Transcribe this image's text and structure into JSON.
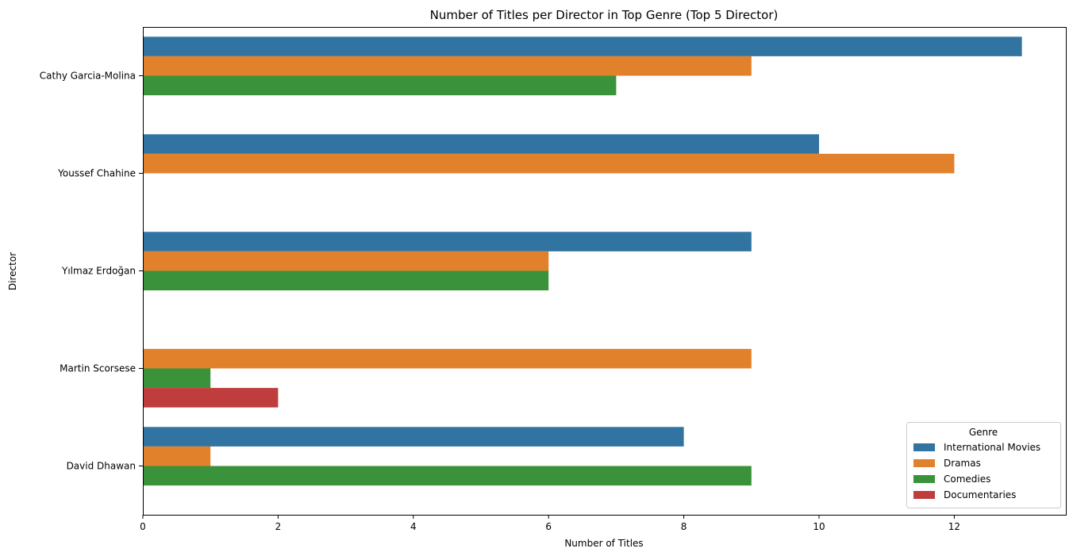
{
  "chart_data": {
    "type": "bar",
    "orientation": "horizontal",
    "title": "Number of Titles per Director in Top Genre (Top 5 Director)",
    "xlabel": "Number of Titles",
    "ylabel": "Director",
    "xlim": [
      0,
      13.65
    ],
    "xticks": [
      0,
      2,
      4,
      6,
      8,
      10,
      12
    ],
    "categories": [
      "Cathy Garcia-Molina",
      "Youssef Chahine",
      "Yılmaz Erdoğan",
      "Martin Scorsese",
      "David Dhawan"
    ],
    "series": [
      {
        "name": "International Movies",
        "color": "#3274a1",
        "values": [
          13,
          10,
          9,
          null,
          8
        ]
      },
      {
        "name": "Dramas",
        "color": "#e1812c",
        "values": [
          9,
          12,
          6,
          9,
          1
        ]
      },
      {
        "name": "Comedies",
        "color": "#3a923a",
        "values": [
          7,
          null,
          6,
          1,
          9
        ]
      },
      {
        "name": "Documentaries",
        "color": "#c03d3e",
        "values": [
          null,
          null,
          null,
          2,
          null
        ]
      }
    ],
    "legend": {
      "title": "Genre",
      "position": "bottom-right"
    },
    "grid": false
  }
}
